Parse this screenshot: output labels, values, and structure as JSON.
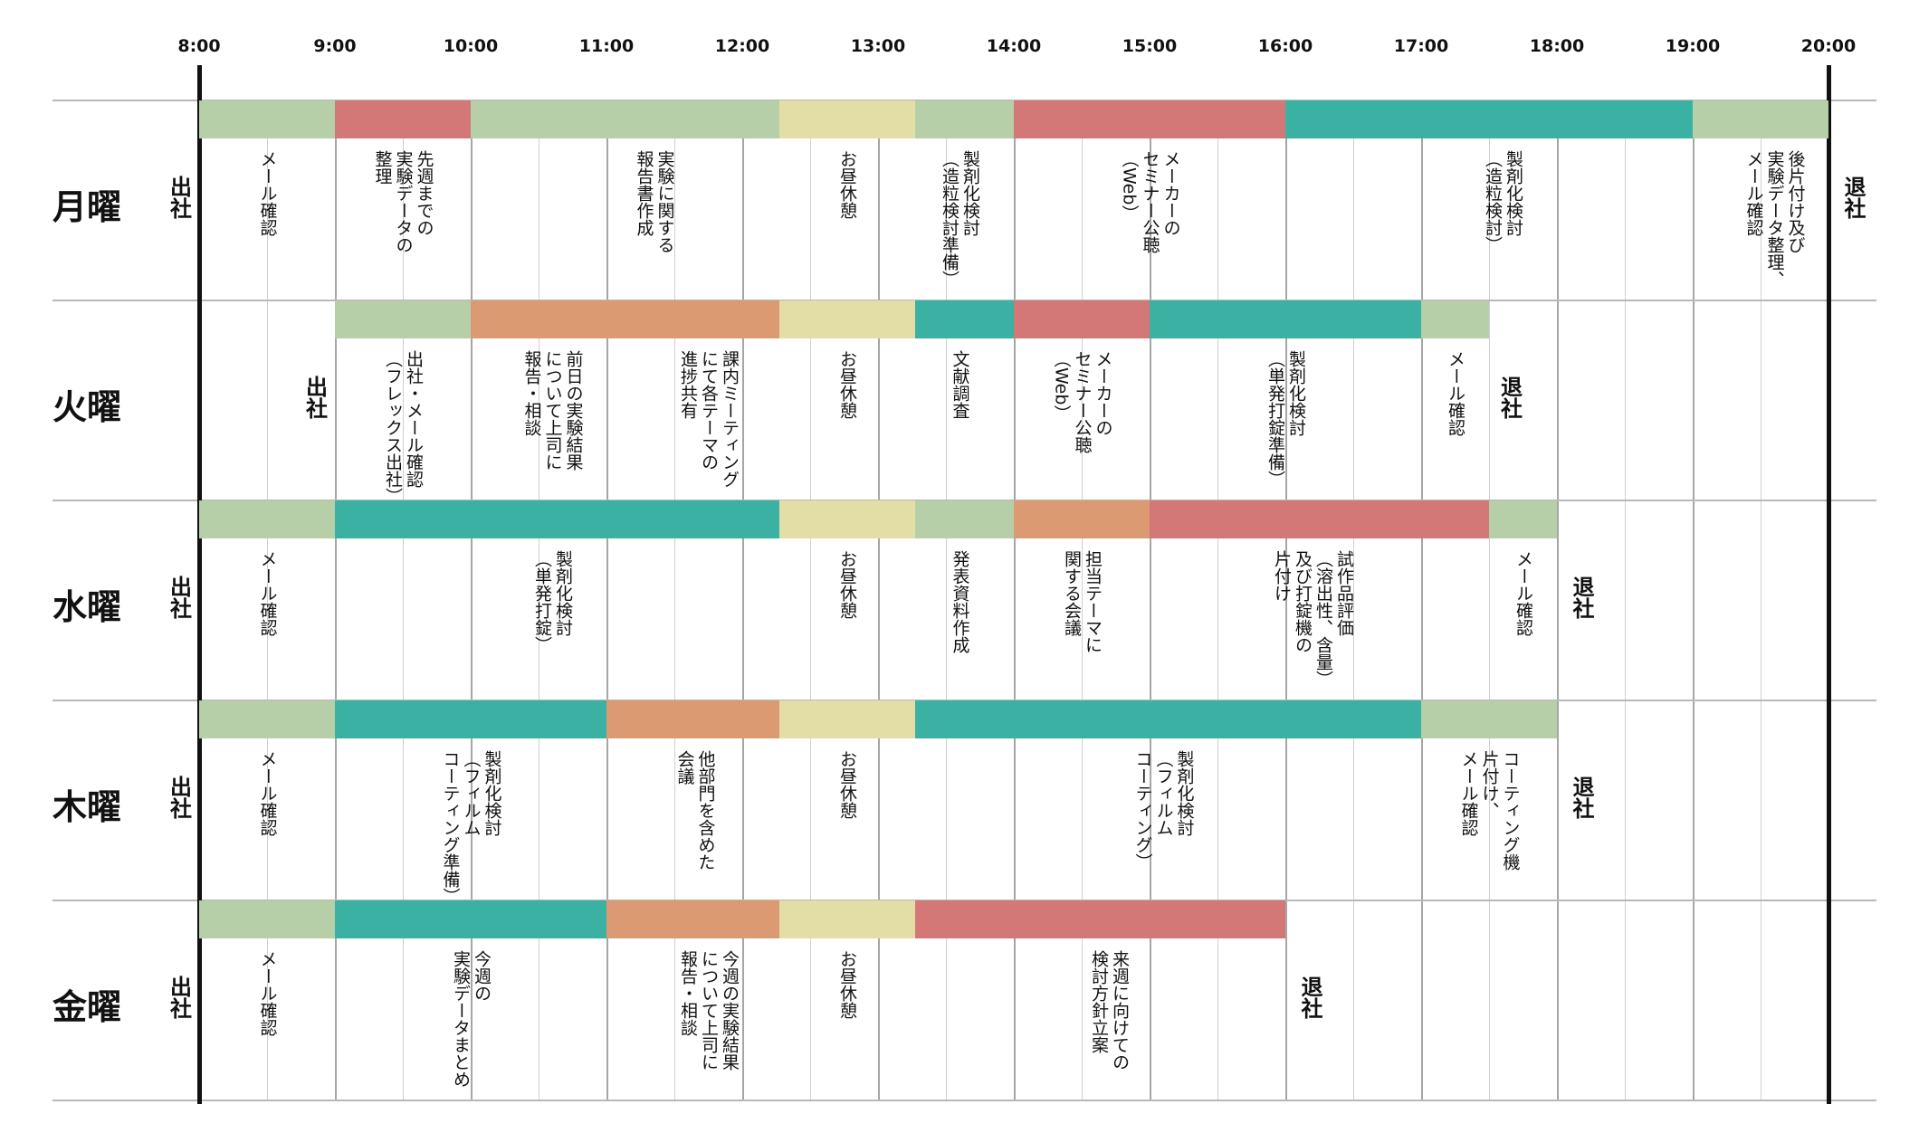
{
  "time_axis": [
    "8:00",
    "9:00",
    "10:00",
    "11:00",
    "12:00",
    "13:00",
    "14:00",
    "15:00",
    "16:00",
    "17:00",
    "18:00",
    "19:00",
    "20:00"
  ],
  "colors": {
    "light-green": "#b6cfa9",
    "red": "#d47777",
    "teal": "#3bb1a3",
    "yellow": "#e2dea6",
    "orange": "#dc9a73"
  },
  "days": [
    {
      "label": "月曜",
      "start_marker": {
        "text": "出社",
        "time": 7.85
      },
      "end_marker": {
        "text": "退社",
        "time": 20.18
      },
      "segments": [
        {
          "start": 8.0,
          "end": 9.0,
          "color": "light-green"
        },
        {
          "start": 9.0,
          "end": 10.0,
          "color": "red"
        },
        {
          "start": 10.0,
          "end": 12.27,
          "color": "light-green"
        },
        {
          "start": 12.27,
          "end": 13.27,
          "color": "yellow"
        },
        {
          "start": 13.27,
          "end": 14.0,
          "color": "light-green"
        },
        {
          "start": 14.0,
          "end": 16.0,
          "color": "red"
        },
        {
          "start": 16.0,
          "end": 19.0,
          "color": "teal"
        },
        {
          "start": 19.0,
          "end": 20.0,
          "color": "light-green"
        }
      ],
      "tasks": [
        {
          "text": "メール確認",
          "time": 8.5
        },
        {
          "text": "先週までの\n実験データの\n整理",
          "time": 9.5
        },
        {
          "text": "実験に関する\n報告書作成",
          "time": 11.35
        },
        {
          "text": "お昼休憩",
          "time": 12.77
        },
        {
          "text": "製剤化検討\n（造粒検討準備）",
          "time": 13.6
        },
        {
          "text": "メーカーの\nセミナー公聴\n（Web）",
          "time": 15.0
        },
        {
          "text": "製剤化検討\n（造粒検討）",
          "time": 17.6
        },
        {
          "text": "後片付け及び\n実験データ整理、\nメール確認",
          "time": 19.6
        }
      ]
    },
    {
      "label": "火曜",
      "start_marker": {
        "text": "出社",
        "time": 8.85
      },
      "end_marker": {
        "text": "退社",
        "time": 17.65
      },
      "segments": [
        {
          "start": 9.0,
          "end": 10.0,
          "color": "light-green"
        },
        {
          "start": 10.0,
          "end": 12.27,
          "color": "orange"
        },
        {
          "start": 12.27,
          "end": 13.27,
          "color": "yellow"
        },
        {
          "start": 13.27,
          "end": 14.0,
          "color": "teal"
        },
        {
          "start": 14.0,
          "end": 15.0,
          "color": "red"
        },
        {
          "start": 15.0,
          "end": 17.0,
          "color": "teal"
        },
        {
          "start": 17.0,
          "end": 17.5,
          "color": "light-green"
        }
      ],
      "tasks": [
        {
          "text": "出社・メール確認\n（フレックス出社）",
          "time": 9.5
        },
        {
          "text": "前日の実験結果\nについて上司に\n報告・相談",
          "time": 10.6
        },
        {
          "text": "課内ミーティング\nにて各テーマの\n進捗共有",
          "time": 11.75
        },
        {
          "text": "お昼休憩",
          "time": 12.77
        },
        {
          "text": "文献調査",
          "time": 13.6
        },
        {
          "text": "メーカーの\nセミナー公聴\n（Web）",
          "time": 14.5
        },
        {
          "text": "製剤化検討\n（単発打錠準備）",
          "time": 16.0
        },
        {
          "text": "メール確認",
          "time": 17.25
        }
      ]
    },
    {
      "label": "水曜",
      "start_marker": {
        "text": "出社",
        "time": 7.85
      },
      "end_marker": {
        "text": "退社",
        "time": 18.18
      },
      "segments": [
        {
          "start": 8.0,
          "end": 9.0,
          "color": "light-green"
        },
        {
          "start": 9.0,
          "end": 12.27,
          "color": "teal"
        },
        {
          "start": 12.27,
          "end": 13.27,
          "color": "yellow"
        },
        {
          "start": 13.27,
          "end": 14.0,
          "color": "light-green"
        },
        {
          "start": 14.0,
          "end": 15.0,
          "color": "orange"
        },
        {
          "start": 15.0,
          "end": 17.5,
          "color": "red"
        },
        {
          "start": 17.5,
          "end": 18.0,
          "color": "light-green"
        }
      ],
      "tasks": [
        {
          "text": "メール確認",
          "time": 8.5
        },
        {
          "text": "製剤化検討\n（単発打錠）",
          "time": 10.6
        },
        {
          "text": "お昼休憩",
          "time": 12.77
        },
        {
          "text": "発表資料作成",
          "time": 13.6
        },
        {
          "text": "担当テーマに\n関する会議",
          "time": 14.5
        },
        {
          "text": "試作品評価\n（溶出性、含量）\n及び打錠機の\n片付け",
          "time": 16.2
        },
        {
          "text": "メール確認",
          "time": 17.75
        }
      ]
    },
    {
      "label": "木曜",
      "start_marker": {
        "text": "出社",
        "time": 7.85
      },
      "end_marker": {
        "text": "退社",
        "time": 18.18
      },
      "segments": [
        {
          "start": 8.0,
          "end": 9.0,
          "color": "light-green"
        },
        {
          "start": 9.0,
          "end": 11.0,
          "color": "teal"
        },
        {
          "start": 11.0,
          "end": 12.27,
          "color": "orange"
        },
        {
          "start": 12.27,
          "end": 13.27,
          "color": "yellow"
        },
        {
          "start": 13.27,
          "end": 17.0,
          "color": "teal"
        },
        {
          "start": 17.0,
          "end": 18.0,
          "color": "light-green"
        }
      ],
      "tasks": [
        {
          "text": "メール確認",
          "time": 8.5
        },
        {
          "text": "製剤化検討\n（フィルム\nコーティング準備）",
          "time": 10.0
        },
        {
          "text": "他部門を含めた\n会議",
          "time": 11.65
        },
        {
          "text": "お昼休憩",
          "time": 12.77
        },
        {
          "text": "製剤化検討\n（フィルム\nコーティング）",
          "time": 15.1
        },
        {
          "text": "コーティング機\n片付け、\nメール確認",
          "time": 17.5
        }
      ]
    },
    {
      "label": "金曜",
      "start_marker": {
        "text": "出社",
        "time": 7.85
      },
      "end_marker": {
        "text": "退社",
        "time": 16.18
      },
      "segments": [
        {
          "start": 8.0,
          "end": 9.0,
          "color": "light-green"
        },
        {
          "start": 9.0,
          "end": 11.0,
          "color": "teal"
        },
        {
          "start": 11.0,
          "end": 12.27,
          "color": "orange"
        },
        {
          "start": 12.27,
          "end": 13.27,
          "color": "yellow"
        },
        {
          "start": 13.27,
          "end": 16.0,
          "color": "red"
        }
      ],
      "tasks": [
        {
          "text": "メール確認",
          "time": 8.5
        },
        {
          "text": "今週の\n実験データまとめ",
          "time": 10.0
        },
        {
          "text": "今週の実験結果\nについて上司に\n報告・相談",
          "time": 11.75
        },
        {
          "text": "お昼休憩",
          "time": 12.77
        },
        {
          "text": "来週に向けての\n検討方針立案",
          "time": 14.7
        }
      ]
    }
  ]
}
